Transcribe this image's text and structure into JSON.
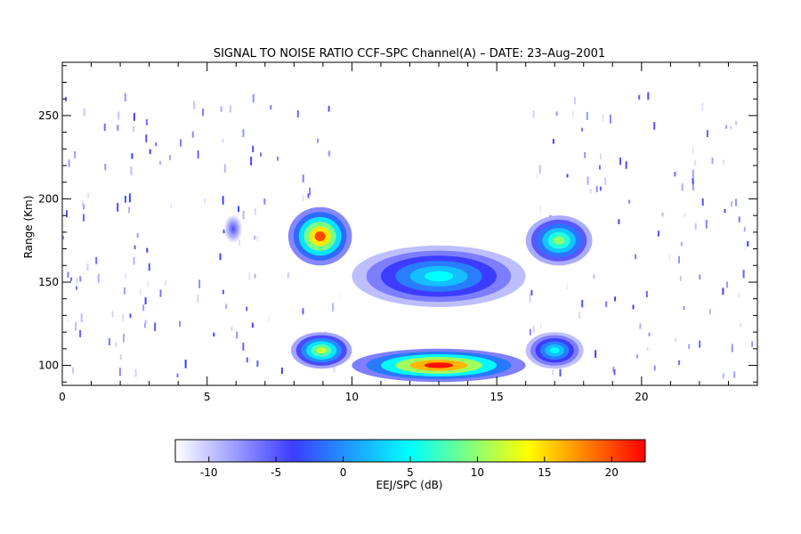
{
  "chart_data": {
    "type": "heatmap",
    "title": "SIGNAL TO NOISE RATIO CCF–SPC Channel(A) – DATE: 23–Aug–2001",
    "xlabel": "",
    "ylabel": "Range (Km)",
    "xlim": [
      0,
      24
    ],
    "ylim": [
      88,
      282
    ],
    "x_ticks": [
      0,
      5,
      10,
      15,
      20
    ],
    "y_ticks": [
      100,
      150,
      200,
      250
    ],
    "colorbar": {
      "label": "EEJ/SPC (dB)",
      "range": [
        -12.5,
        22.5
      ],
      "ticks": [
        -10,
        -5,
        0,
        5,
        10,
        15,
        20
      ],
      "colors": [
        "#ffffff",
        "#3c3cff",
        "#00ffff",
        "#ffff00",
        "#ff0000"
      ]
    },
    "regions": [
      {
        "name": "upper echo morning",
        "x": [
          7.8,
          10.0
        ],
        "y": [
          160,
          195
        ],
        "peak_db": 20
      },
      {
        "name": "lower echo morning",
        "x": [
          7.9,
          10.0
        ],
        "y": [
          98,
          120
        ],
        "peak_db": 12
      },
      {
        "name": "upper echo midday",
        "x": [
          10.0,
          16.0
        ],
        "y": [
          135,
          172
        ],
        "peak_db": 5
      },
      {
        "name": "lower echo midday",
        "x": [
          10.0,
          16.0
        ],
        "y": [
          90,
          110
        ],
        "peak_db": 22
      },
      {
        "name": "upper echo afternoon",
        "x": [
          16.0,
          18.3
        ],
        "y": [
          160,
          190
        ],
        "peak_db": 10
      },
      {
        "name": "lower echo afternoon",
        "x": [
          16.0,
          18.0
        ],
        "y": [
          98,
          120
        ],
        "peak_db": 5
      },
      {
        "name": "patch near 6h",
        "x": [
          5.6,
          6.2
        ],
        "y": [
          174,
          190
        ],
        "peak_db": -5
      }
    ]
  }
}
